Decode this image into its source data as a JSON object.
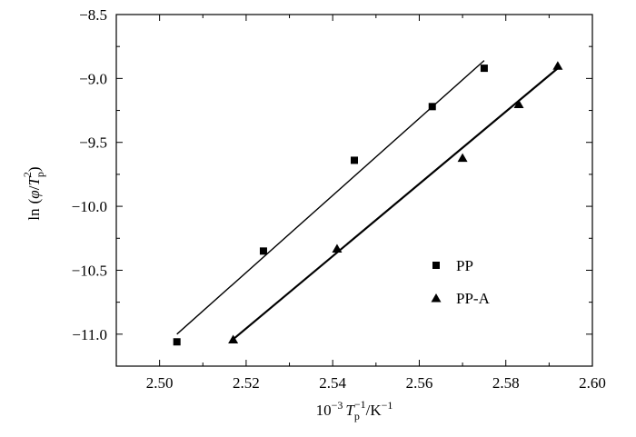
{
  "chart_data": {
    "type": "scatter",
    "title": "",
    "xlabel": {
      "prefix": "10",
      "prefix_exp": "−3",
      "var": "T",
      "var_sub": "p",
      "var_exp": "−1",
      "unit_sep": "/K",
      "unit_exp": "−1"
    },
    "ylabel": {
      "fn": "ln",
      "open": "(",
      "var1": "φ",
      "slash": "/",
      "var2": "T",
      "var2_sub": "p",
      "var2_exp": "2",
      "close": ")"
    },
    "xlim": [
      2.49,
      2.6
    ],
    "ylim": [
      -11.25,
      -8.5
    ],
    "x_ticks": [
      "2.50",
      "2.52",
      "2.54",
      "2.56",
      "2.58",
      "2.60"
    ],
    "y_ticks": [
      "−8.5",
      "−9.0",
      "−9.5",
      "−10.0",
      "−10.5",
      "−11.0"
    ],
    "grid": false,
    "legend_position": "center-right",
    "series": [
      {
        "name": "PP",
        "marker": "square",
        "color": "#000000",
        "x": [
          2.504,
          2.524,
          2.545,
          2.563,
          2.575
        ],
        "y": [
          -11.06,
          -10.35,
          -9.64,
          -9.22,
          -8.92
        ],
        "fit": {
          "x": [
            2.504,
            2.575
          ],
          "y": [
            -11.0,
            -8.86
          ]
        }
      },
      {
        "name": "PP-A",
        "marker": "triangle",
        "color": "#000000",
        "x": [
          2.517,
          2.541,
          2.57,
          2.583,
          2.592
        ],
        "y": [
          -11.04,
          -10.33,
          -9.62,
          -9.2,
          -8.9
        ],
        "fit": {
          "x": [
            2.517,
            2.592
          ],
          "y": [
            -11.04,
            -8.92
          ]
        }
      }
    ]
  }
}
